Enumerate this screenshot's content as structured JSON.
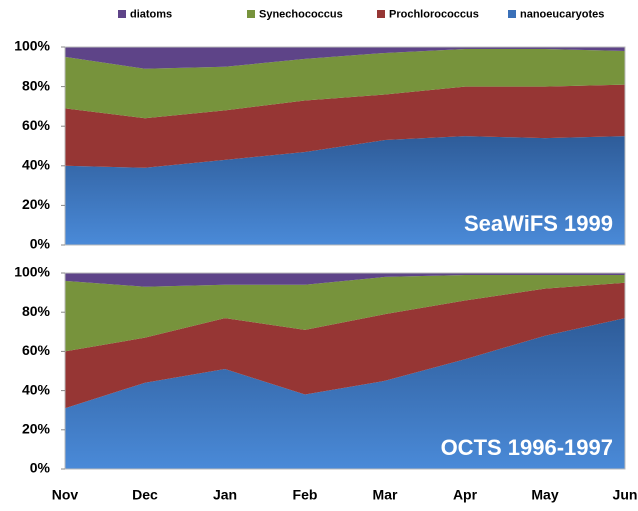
{
  "chart_data": [
    {
      "type": "stacked_area",
      "title": "SeaWiFS 1999",
      "series": [
        {
          "name": "diatoms",
          "color": "#5e4488",
          "values": [
            5,
            11,
            10,
            6,
            3,
            1,
            1,
            2
          ]
        },
        {
          "name": "Synechococcus",
          "color": "#77933c",
          "values": [
            26,
            25,
            22,
            21,
            21,
            19,
            19,
            17
          ]
        },
        {
          "name": "Prochlorococcus",
          "color": "#963634",
          "values": [
            29,
            25,
            25,
            26,
            23,
            25,
            26,
            26
          ]
        },
        {
          "name": "nanoeucaryotes",
          "color": "#3a70b8",
          "values": [
            40,
            39,
            43,
            47,
            53,
            55,
            54,
            55
          ]
        }
      ],
      "ylim": [
        0,
        100
      ],
      "yticks": [
        {
          "value": 0,
          "label": "0%"
        },
        {
          "value": 20,
          "label": "20%"
        },
        {
          "value": 40,
          "label": "40%"
        },
        {
          "value": 60,
          "label": "60%"
        },
        {
          "value": 80,
          "label": "80%"
        },
        {
          "value": 100,
          "label": "100%"
        }
      ]
    },
    {
      "type": "stacked_area",
      "title": "OCTS 1996-1997",
      "categories": [
        "Nov",
        "Dec",
        "Jan",
        "Feb",
        "Mar",
        "Apr",
        "May",
        "Jun"
      ],
      "series": [
        {
          "color": "#5e4488",
          "values": [
            4,
            7,
            6,
            6,
            2,
            1,
            1,
            1
          ]
        },
        {
          "color": "#77933c",
          "values": [
            36,
            26,
            17,
            23,
            19,
            13,
            7,
            4
          ]
        },
        {
          "color": "#963634",
          "values": [
            29,
            23,
            26,
            33,
            34,
            30,
            24,
            18
          ]
        },
        {
          "color": "#3a70b8",
          "values": [
            31,
            44,
            51,
            38,
            45,
            56,
            68,
            77
          ]
        }
      ],
      "ylim": [
        0,
        100
      ],
      "yticks": [
        {
          "value": 0,
          "label": "0%"
        },
        {
          "value": 20,
          "label": "20%"
        },
        {
          "value": 40,
          "label": "40%"
        },
        {
          "value": 60,
          "label": "60%"
        },
        {
          "value": 80,
          "label": "80%"
        },
        {
          "value": 100,
          "label": "100%"
        }
      ]
    }
  ]
}
